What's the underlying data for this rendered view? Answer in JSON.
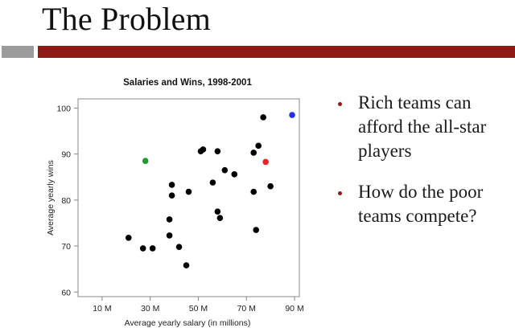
{
  "slide": {
    "title": "The Problem",
    "accent_color": "#8e1a16",
    "gray_bar_color": "#9b9b9b"
  },
  "bullets": [
    {
      "text": "Rich teams can afford the all-star players"
    },
    {
      "text": "How do the poor teams compete?"
    }
  ],
  "chart_data": {
    "type": "scatter",
    "title": "Salaries and Wins, 1998-2001",
    "xlabel": "Average yearly salary (in millions)",
    "ylabel": "Average yearly wins",
    "xlim": [
      0,
      92
    ],
    "ylim": [
      59,
      102
    ],
    "x_ticks": [
      10,
      30,
      50,
      70,
      90
    ],
    "x_tick_labels": [
      "10 M",
      "30 M",
      "50 M",
      "70 M",
      "90 M"
    ],
    "y_ticks": [
      60,
      70,
      80,
      90,
      100
    ],
    "y_tick_labels": [
      "60",
      "70",
      "80",
      "90",
      "100"
    ],
    "grid": false,
    "default_color": "#000000",
    "points": [
      {
        "x": 21,
        "y": 71.8
      },
      {
        "x": 27,
        "y": 69.5
      },
      {
        "x": 31,
        "y": 69.5
      },
      {
        "x": 38,
        "y": 72.3
      },
      {
        "x": 38,
        "y": 75.8
      },
      {
        "x": 39,
        "y": 81.0
      },
      {
        "x": 39,
        "y": 83.3
      },
      {
        "x": 42,
        "y": 69.8
      },
      {
        "x": 45,
        "y": 65.8
      },
      {
        "x": 46,
        "y": 81.8
      },
      {
        "x": 51,
        "y": 90.6
      },
      {
        "x": 52,
        "y": 91.0
      },
      {
        "x": 56,
        "y": 83.8
      },
      {
        "x": 58,
        "y": 90.6
      },
      {
        "x": 58,
        "y": 77.5
      },
      {
        "x": 59,
        "y": 76.1
      },
      {
        "x": 61,
        "y": 86.5
      },
      {
        "x": 65,
        "y": 85.6
      },
      {
        "x": 73,
        "y": 90.3
      },
      {
        "x": 73,
        "y": 81.8
      },
      {
        "x": 74,
        "y": 73.5
      },
      {
        "x": 75,
        "y": 91.8
      },
      {
        "x": 77,
        "y": 98.0
      },
      {
        "x": 80,
        "y": 83.0
      },
      {
        "x": 28,
        "y": 88.5,
        "color": "#1f9a2e"
      },
      {
        "x": 78,
        "y": 88.3,
        "color": "#e8262a"
      },
      {
        "x": 89,
        "y": 98.5,
        "color": "#2233dd"
      }
    ]
  }
}
